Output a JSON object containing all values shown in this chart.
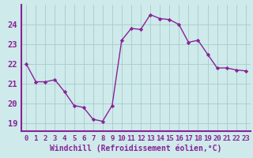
{
  "x": [
    0,
    1,
    2,
    3,
    4,
    5,
    6,
    7,
    8,
    9,
    10,
    11,
    12,
    13,
    14,
    15,
    16,
    17,
    18,
    19,
    20,
    21,
    22,
    23
  ],
  "y": [
    22.0,
    21.1,
    21.1,
    21.2,
    20.6,
    19.9,
    19.8,
    19.2,
    19.1,
    19.9,
    23.2,
    23.8,
    23.75,
    24.5,
    24.3,
    24.25,
    24.0,
    23.1,
    23.2,
    22.5,
    21.8,
    21.8,
    21.7,
    21.65
  ],
  "xlabel": "Windchill (Refroidissement éolien,°C)",
  "xticks": [
    0,
    1,
    2,
    3,
    4,
    5,
    6,
    7,
    8,
    9,
    10,
    11,
    12,
    13,
    14,
    15,
    16,
    17,
    18,
    19,
    20,
    21,
    22,
    23
  ],
  "yticks": [
    19,
    20,
    21,
    22,
    23,
    24
  ],
  "ylim": [
    18.6,
    25.0
  ],
  "xlim": [
    -0.5,
    23.5
  ],
  "line_color": "#882299",
  "marker_color": "#882299",
  "bg_color": "#ceeaea",
  "grid_color": "#aacccc",
  "spine_color": "#882299",
  "tick_label_color": "#882299",
  "xlabel_fontsize": 7.0,
  "ytick_fontsize": 7.5,
  "xtick_fontsize": 6.5
}
